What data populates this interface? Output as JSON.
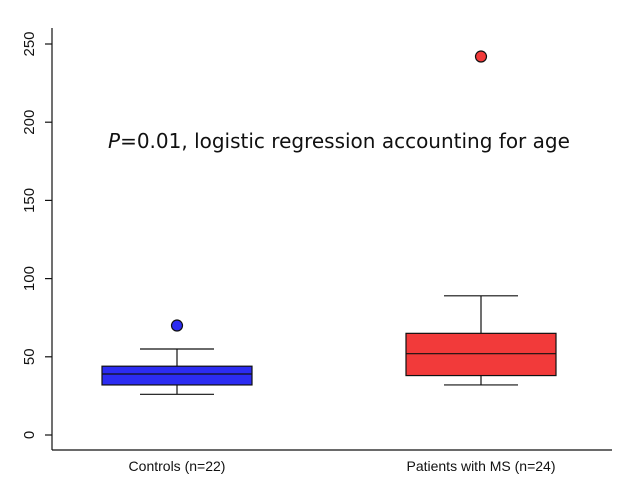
{
  "chart_data": {
    "type": "box",
    "ylabel": "",
    "xlabel": "",
    "ylim": [
      0,
      250
    ],
    "yticks": [
      0,
      50,
      100,
      150,
      200,
      250
    ],
    "annotation": {
      "italic": "P",
      "text": "=0.01, logistic regression accounting for age"
    },
    "grid": false,
    "groups": [
      {
        "label": "Controls (n=22)",
        "color": "#2c2cf2",
        "whisker_low": 26,
        "q1": 32,
        "median": 39,
        "q3": 44,
        "whisker_high": 55,
        "outliers": [
          70
        ]
      },
      {
        "label": "Patients with MS (n=24)",
        "color": "#f23a3a",
        "whisker_low": 32,
        "q1": 38,
        "median": 52,
        "q3": 65,
        "whisker_high": 89,
        "outliers": [
          242
        ]
      }
    ]
  }
}
